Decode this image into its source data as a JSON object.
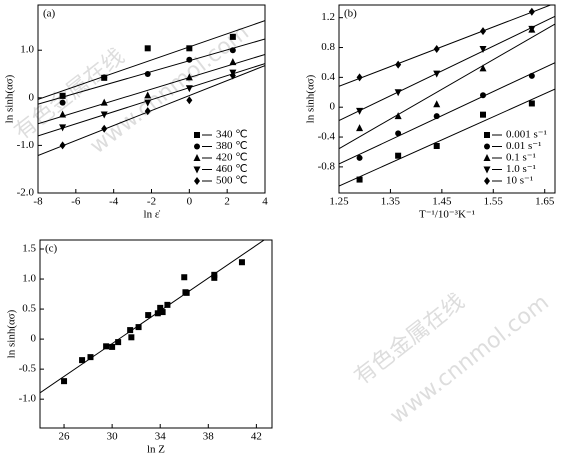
{
  "watermarks": [
    "有色金属在线",
    "www.cnnmol.com",
    "有色金属在线",
    "www.cnnmol.com"
  ],
  "chart_data": [
    {
      "type": "scatter",
      "panel": "(a)",
      "x_label": "ln ε̇",
      "y_label": "ln sinh(ασ)",
      "xlim": [
        -8,
        4
      ],
      "xticks": [
        -8,
        -6,
        -4,
        -2,
        0,
        2,
        4
      ],
      "ylim": [
        -2,
        1.95
      ],
      "yticks": [
        {
          "value": -2,
          "label": "-2.0"
        },
        {
          "value": -1,
          "label": "-1.0"
        },
        0,
        {
          "value": 1,
          "label": "1.0"
        }
      ],
      "fit_lines": true,
      "legend": "lower right",
      "x": [
        -6.7,
        -4.5,
        -2.2,
        0,
        2.3
      ],
      "series": [
        {
          "name": "340 ℃",
          "marker": "square",
          "color": "#000000",
          "values": [
            0.04,
            0.42,
            1.04,
            1.04,
            1.28
          ]
        },
        {
          "name": "380 ℃",
          "marker": "circle",
          "color": "#000000",
          "values": [
            -0.1,
            0.43,
            0.5,
            0.8,
            1.0
          ]
        },
        {
          "name": "420 ℃",
          "marker": "triangle",
          "color": "#000000",
          "values": [
            -0.35,
            -0.1,
            0.05,
            0.43,
            0.75
          ]
        },
        {
          "name": "460 ℃",
          "marker": "down-triangle",
          "color": "#000000",
          "values": [
            -0.62,
            -0.35,
            -0.1,
            0.2,
            0.53
          ]
        },
        {
          "name": "500 ℃",
          "marker": "diamond",
          "color": "#000000",
          "values": [
            -1.0,
            -0.65,
            -0.28,
            -0.05,
            0.47
          ]
        }
      ]
    },
    {
      "type": "scatter",
      "panel": "(b)",
      "x_label": "T⁻¹/10⁻³K⁻¹",
      "y_label": "ln sinh(ασ)",
      "xlim": [
        1.25,
        1.67
      ],
      "xticks": [
        1.25,
        1.35,
        1.45,
        1.55,
        1.65
      ],
      "ylim": [
        -1.15,
        1.37
      ],
      "yticks": [
        -0.8,
        -0.4,
        0,
        0.4,
        0.8,
        1.2
      ],
      "fit_lines": true,
      "legend": "lower right",
      "x": [
        1.29,
        1.365,
        1.44,
        1.53,
        1.625
      ],
      "series": [
        {
          "name": "0.001 s⁻¹",
          "marker": "square",
          "color": "#000000",
          "values": [
            -0.97,
            -0.65,
            -0.52,
            -0.1,
            0.05
          ]
        },
        {
          "name": "0.01 s⁻¹",
          "marker": "circle",
          "color": "#000000",
          "values": [
            -0.68,
            -0.35,
            -0.12,
            0.16,
            0.42
          ]
        },
        {
          "name": "0.1 s⁻¹",
          "marker": "triangle",
          "color": "#000000",
          "values": [
            -0.28,
            -0.12,
            0.04,
            0.52,
            1.04
          ]
        },
        {
          "name": "1.0 s⁻¹",
          "marker": "down-triangle",
          "color": "#000000",
          "values": [
            -0.05,
            0.2,
            0.45,
            0.78,
            1.05
          ]
        },
        {
          "name": "10 s⁻¹",
          "marker": "diamond",
          "color": "#000000",
          "values": [
            0.4,
            0.57,
            0.78,
            1.02,
            1.28
          ]
        }
      ]
    },
    {
      "type": "scatter",
      "panel": "(c)",
      "x_label": "ln Z",
      "y_label": "ln sinh(ασ)",
      "xlim": [
        24,
        43.3
      ],
      "xticks": [
        26,
        30,
        34,
        38,
        42
      ],
      "ylim": [
        -1.48,
        1.65
      ],
      "yticks": [
        {
          "value": -1,
          "label": "-1.0"
        },
        -0.5,
        0,
        0.5,
        {
          "value": 1,
          "label": "1.0"
        },
        1.5
      ],
      "fit_lines": true,
      "x": [
        26,
        27.5,
        28.2,
        29.5,
        30,
        30.5,
        31.5,
        31.6,
        32.2,
        33,
        33.8,
        34,
        34.2,
        34.6,
        36,
        36.1,
        36.2,
        38.5,
        38.5,
        40.8
      ],
      "series": [
        {
          "marker": "square",
          "color": "#000000",
          "values": [
            -0.7,
            -0.35,
            -0.3,
            -0.12,
            -0.13,
            -0.05,
            0.15,
            0.03,
            0.2,
            0.4,
            0.43,
            0.52,
            0.45,
            0.57,
            1.03,
            0.78,
            0.77,
            1.02,
            1.07,
            1.28
          ]
        }
      ]
    }
  ]
}
